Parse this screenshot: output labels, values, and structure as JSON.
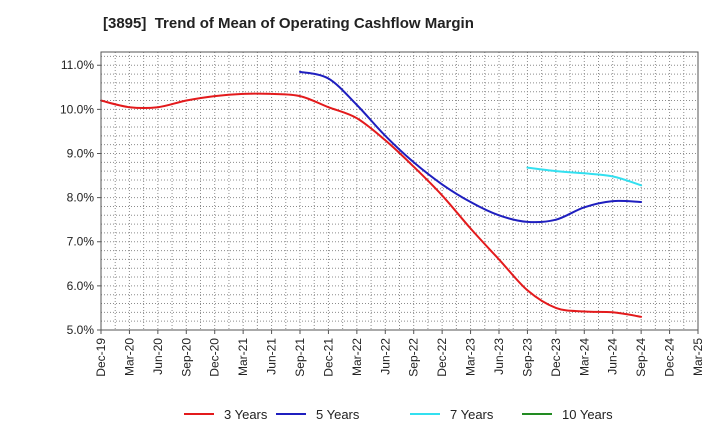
{
  "chart_data": {
    "type": "line",
    "title": "[3895]  Trend of Mean of Operating Cashflow Margin",
    "xlabel": "",
    "ylabel": "",
    "categories": [
      "Dec-19",
      "Mar-20",
      "Jun-20",
      "Sep-20",
      "Dec-20",
      "Mar-21",
      "Jun-21",
      "Sep-21",
      "Dec-21",
      "Mar-22",
      "Jun-22",
      "Sep-22",
      "Dec-22",
      "Mar-23",
      "Jun-23",
      "Sep-23",
      "Dec-23",
      "Mar-24",
      "Jun-24",
      "Sep-24",
      "Dec-24",
      "Mar-25"
    ],
    "y_ticks": [
      5.0,
      6.0,
      7.0,
      8.0,
      9.0,
      10.0,
      11.0
    ],
    "y_tick_labels": [
      "5.0%",
      "6.0%",
      "7.0%",
      "8.0%",
      "9.0%",
      "10.0%",
      "11.0%"
    ],
    "ylim": [
      5.0,
      11.3
    ],
    "grid": true,
    "legend_position": "bottom",
    "series": [
      {
        "name": "3 Years",
        "color": "#e31a1c",
        "values": [
          10.2,
          10.05,
          10.05,
          10.2,
          10.3,
          10.35,
          10.35,
          10.3,
          10.05,
          9.8,
          9.3,
          8.7,
          8.05,
          7.3,
          6.6,
          5.9,
          5.5,
          5.42,
          5.4,
          5.3,
          null,
          null
        ]
      },
      {
        "name": "5 Years",
        "color": "#1f1fbf",
        "values": [
          null,
          null,
          null,
          null,
          null,
          null,
          null,
          10.85,
          10.7,
          10.1,
          9.4,
          8.8,
          8.3,
          7.9,
          7.6,
          7.45,
          7.5,
          7.78,
          7.92,
          7.9,
          null,
          null
        ]
      },
      {
        "name": "7 Years",
        "color": "#33e0f0",
        "values": [
          null,
          null,
          null,
          null,
          null,
          null,
          null,
          null,
          null,
          null,
          null,
          null,
          null,
          null,
          null,
          8.68,
          8.6,
          8.55,
          8.48,
          8.28,
          null,
          null
        ]
      },
      {
        "name": "10 Years",
        "color": "#228b22",
        "values": [
          null,
          null,
          null,
          null,
          null,
          null,
          null,
          null,
          null,
          null,
          null,
          null,
          null,
          null,
          null,
          null,
          null,
          null,
          null,
          null,
          null,
          null
        ]
      }
    ]
  }
}
